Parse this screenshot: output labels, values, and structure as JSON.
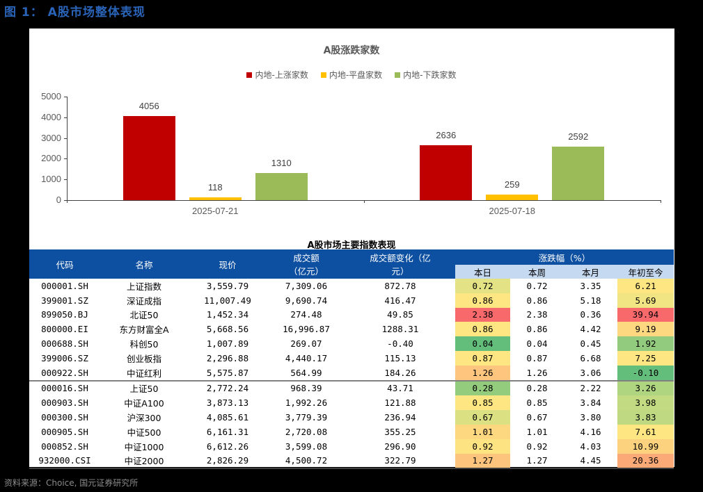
{
  "figure": {
    "title": "图 1： A股市场整体表现",
    "source": "资料来源：Choice, 国元证券研究所"
  },
  "chart_data": {
    "type": "bar",
    "title": "A股涨跌家数",
    "categories": [
      "2025-07-21",
      "2025-07-18"
    ],
    "series": [
      {
        "name": "内地-上涨家数",
        "color": "#c00000",
        "values": [
          4056,
          2636
        ]
      },
      {
        "name": "内地-平盘家数",
        "color": "#ffc000",
        "values": [
          118,
          259
        ]
      },
      {
        "name": "内地-下跌家数",
        "color": "#9bbb59",
        "values": [
          1310,
          2592
        ]
      }
    ],
    "xlabel": "",
    "ylabel": "",
    "ylim": [
      0,
      5000
    ],
    "yticks": [
      0,
      1000,
      2000,
      3000,
      4000,
      5000
    ],
    "grid": false,
    "legend_position": "top"
  },
  "table": {
    "title": "A股市场主要指数表现",
    "headers": {
      "code": "代码",
      "name": "名称",
      "price": "现价",
      "turnover": "成交额（亿元）",
      "turnover_line1": "成交额",
      "turnover_line2": "（亿元）",
      "turnover_change_line1": "成交额变化（亿",
      "turnover_change_line2": "元）",
      "change_group": "涨跌幅（%）",
      "day": "本日",
      "week": "本周",
      "month": "本月",
      "ytd": "年初至今"
    },
    "rows": [
      {
        "code": "000001.SH",
        "name": "上证指数",
        "price": "3,559.79",
        "turnover": "7,309.06",
        "turnover_change": "872.78",
        "day": "0.72",
        "week": "0.72",
        "month": "3.35",
        "ytd": "6.21",
        "day_color": "#e3e285",
        "ytd_color": "#fee783"
      },
      {
        "code": "399001.SZ",
        "name": "深证成指",
        "price": "11,007.49",
        "turnover": "9,690.74",
        "turnover_change": "416.47",
        "day": "0.86",
        "week": "0.86",
        "month": "5.18",
        "ytd": "5.69",
        "day_color": "#fee783",
        "ytd_color": "#f1e583"
      },
      {
        "code": "899050.BJ",
        "name": "北证50",
        "price": "1,452.34",
        "turnover": "274.48",
        "turnover_change": "49.85",
        "day": "2.38",
        "week": "2.38",
        "month": "0.36",
        "ytd": "39.94",
        "day_color": "#f8696b",
        "ytd_color": "#f8696b"
      },
      {
        "code": "800000.EI",
        "name": "东方财富全A",
        "price": "5,668.56",
        "turnover": "16,996.87",
        "turnover_change": "1288.31",
        "day": "0.86",
        "week": "0.86",
        "month": "4.42",
        "ytd": "9.19",
        "day_color": "#fee783",
        "ytd_color": "#fed880"
      },
      {
        "code": "000688.SH",
        "name": "科创50",
        "price": "1,007.89",
        "turnover": "269.07",
        "turnover_change": "-0.40",
        "day": "0.04",
        "week": "0.04",
        "month": "0.45",
        "ytd": "1.92",
        "day_color": "#63be7b",
        "ytd_color": "#92cb7e"
      },
      {
        "code": "399006.SZ",
        "name": "创业板指",
        "price": "2,296.88",
        "turnover": "4,440.17",
        "turnover_change": "115.13",
        "day": "0.87",
        "week": "0.87",
        "month": "6.68",
        "ytd": "7.25",
        "day_color": "#fee783",
        "ytd_color": "#fee783"
      },
      {
        "code": "000922.SH",
        "name": "中证红利",
        "price": "5,575.87",
        "turnover": "564.99",
        "turnover_change": "184.26",
        "day": "1.26",
        "week": "1.26",
        "month": "3.06",
        "ytd": "-0.10",
        "day_color": "#fdc57d",
        "ytd_color": "#63be7b"
      },
      {
        "code": "000016.SH",
        "name": "上证50",
        "price": "2,772.24",
        "turnover": "968.39",
        "turnover_change": "43.71",
        "day": "0.28",
        "week": "0.28",
        "month": "2.22",
        "ytd": "3.26",
        "day_color": "#94cc7e",
        "ytd_color": "#b0d580"
      },
      {
        "code": "000903.SH",
        "name": "中证A100",
        "price": "3,873.13",
        "turnover": "1,992.26",
        "turnover_change": "121.88",
        "day": "0.85",
        "week": "0.85",
        "month": "3.84",
        "ytd": "3.98",
        "day_color": "#fee783",
        "ytd_color": "#c2da81"
      },
      {
        "code": "000300.SH",
        "name": "沪深300",
        "price": "4,085.61",
        "turnover": "3,779.39",
        "turnover_change": "236.94",
        "day": "0.67",
        "week": "0.67",
        "month": "3.80",
        "ytd": "3.83",
        "day_color": "#dbe182",
        "ytd_color": "#bed981"
      },
      {
        "code": "000905.SH",
        "name": "中证500",
        "price": "6,161.31",
        "turnover": "2,720.08",
        "turnover_change": "355.25",
        "day": "1.01",
        "week": "1.01",
        "month": "4.16",
        "ytd": "7.61",
        "day_color": "#fed880",
        "ytd_color": "#fee783"
      },
      {
        "code": "000852.SH",
        "name": "中证1000",
        "price": "6,612.26",
        "turnover": "3,599.08",
        "turnover_change": "296.90",
        "day": "0.92",
        "week": "0.92",
        "month": "4.03",
        "ytd": "10.99",
        "day_color": "#fee382",
        "ytd_color": "#fdd27f"
      },
      {
        "code": "932000.CSI",
        "name": "中证2000",
        "price": "2,826.29",
        "turnover": "4,500.72",
        "turnover_change": "322.79",
        "day": "1.27",
        "week": "1.27",
        "month": "4.45",
        "ytd": "20.36",
        "day_color": "#fdc47d",
        "ytd_color": "#fbaa77"
      }
    ]
  }
}
